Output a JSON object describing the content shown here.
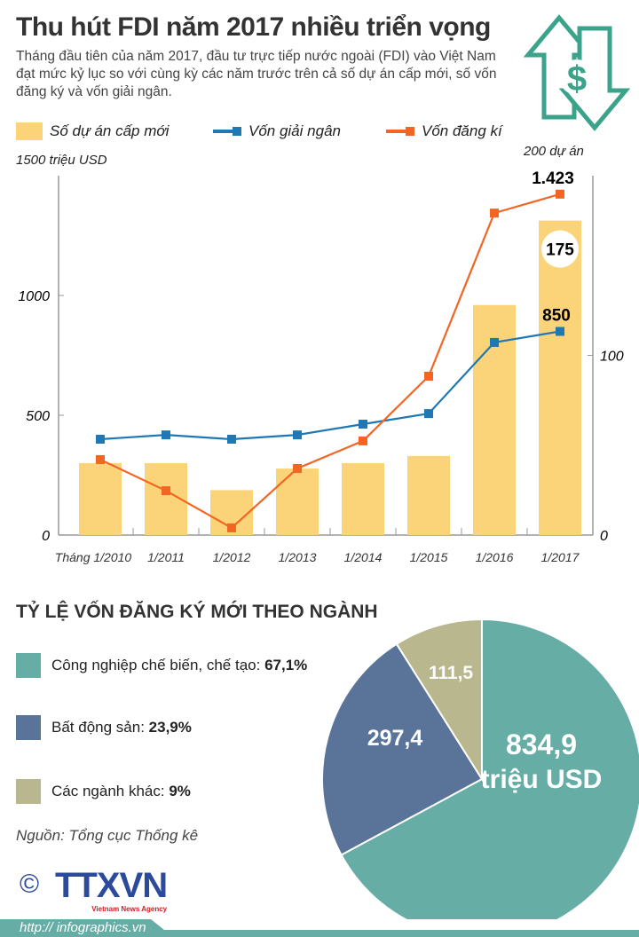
{
  "title": "Thu hút FDI năm 2017 nhiều triển vọng",
  "subtitle": "Tháng đầu tiên của năm 2017, đầu tư trực tiếp nước ngoài (FDI) vào Việt Nam đạt mức kỷ lục so với cùng kỳ các năm trước trên cả số dự án cấp mới, số vốn đăng ký và vốn giải ngân.",
  "colors": {
    "bar": "#fbd47a",
    "disbursed": "#1f78b4",
    "registered": "#f26522",
    "teal": "#66ada6",
    "slate": "#5a7399",
    "khaki": "#b9b78e"
  },
  "chart_data": [
    {
      "type": "bar+line",
      "categories": [
        "Tháng 1/2010",
        "1/2011",
        "1/2012",
        "1/2013",
        "1/2014",
        "1/2015",
        "1/2016",
        "1/2017"
      ],
      "ylabel": "1500 triệu USD",
      "y2label": "200 dự án",
      "ylim": [
        0,
        1500
      ],
      "y2lim": [
        0,
        200
      ],
      "yticks": [
        "0",
        "500",
        "1000"
      ],
      "y2ticks": [
        "0",
        "100"
      ],
      "series": [
        {
          "name": "Số dự án cấp mới",
          "type": "bar",
          "axis": "right",
          "values": [
            40,
            40,
            25,
            37,
            40,
            44,
            128,
            175
          ]
        },
        {
          "name": "Vốn giải ngân",
          "type": "line",
          "axis": "left",
          "values": [
            400,
            418,
            400,
            418,
            463,
            507,
            804,
            850
          ]
        },
        {
          "name": "Vốn đăng kí",
          "type": "line",
          "axis": "left",
          "values": [
            315,
            185,
            30,
            278,
            393,
            663,
            1344,
            1423
          ]
        }
      ],
      "labels": {
        "bar_last": "175",
        "disbursed_last": "850",
        "registered_last": "1.423"
      }
    },
    {
      "type": "pie",
      "title": "TỶ LỆ VỐN ĐĂNG KÝ MỚI THEO NGÀNH",
      "slices": [
        {
          "name": "Công nghiệp chế biến, chế tạo:",
          "pct": "67,1%",
          "value": 834.9,
          "label": "834,9",
          "unit": "triệu USD"
        },
        {
          "name": "Bất động sản:",
          "pct": "23,9%",
          "value": 297.4,
          "label": "297,4"
        },
        {
          "name": "Các ngành khác:",
          "pct": "9%",
          "value": 111.5,
          "label": "111,5"
        }
      ]
    }
  ],
  "source": "Nguồn: Tổng cục Thống kê",
  "logo": {
    "text": "TTXVN",
    "sub": "Vietnam News Agency",
    "copyright": "©"
  },
  "footer_url": "http:// infographics.vn"
}
